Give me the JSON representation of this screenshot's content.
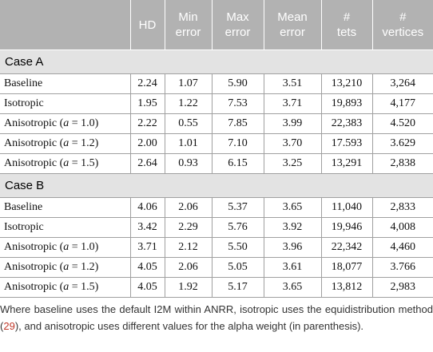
{
  "table": {
    "header": [
      [
        "HD"
      ],
      [
        "Min",
        "error"
      ],
      [
        "Max",
        "error"
      ],
      [
        "Mean",
        "error"
      ],
      [
        "#",
        "tets"
      ],
      [
        "#",
        "vertices"
      ]
    ],
    "sections": [
      {
        "title": "Case A",
        "rows": [
          {
            "label": [
              "Baseline"
            ],
            "cells": [
              "2.24",
              "1.07",
              "5.90",
              "3.51",
              "13,210",
              "3,264"
            ]
          },
          {
            "label": [
              "Isotropic"
            ],
            "cells": [
              "1.95",
              "1.22",
              "7.53",
              "3.71",
              "19,893",
              "4,177"
            ]
          },
          {
            "label": [
              "Anisotropic (",
              "a",
              " = 1.0)"
            ],
            "cells": [
              "2.22",
              "0.55",
              "7.85",
              "3.99",
              "22,383",
              "4.520"
            ]
          },
          {
            "label": [
              "Anisotropic (",
              "a",
              " = 1.2)"
            ],
            "cells": [
              "2.00",
              "1.01",
              "7.10",
              "3.70",
              "17.593",
              "3.629"
            ]
          },
          {
            "label": [
              "Anisotropic (",
              "a",
              " = 1.5)"
            ],
            "cells": [
              "2.64",
              "0.93",
              "6.15",
              "3.25",
              "13,291",
              "2,838"
            ]
          }
        ]
      },
      {
        "title": "Case B",
        "rows": [
          {
            "label": [
              "Baseline"
            ],
            "cells": [
              "4.06",
              "2.06",
              "5.37",
              "3.65",
              "11,040",
              "2,833"
            ]
          },
          {
            "label": [
              "Isotropic"
            ],
            "cells": [
              "3.42",
              "2.29",
              "5.76",
              "3.92",
              "19,946",
              "4,008"
            ]
          },
          {
            "label": [
              "Anisotropic (",
              "a",
              " = 1.0)"
            ],
            "cells": [
              "3.71",
              "2.12",
              "5.50",
              "3.96",
              "22,342",
              "4,460"
            ]
          },
          {
            "label": [
              "Anisotropic (",
              "a",
              " = 1.2)"
            ],
            "cells": [
              "4.05",
              "2.06",
              "5.05",
              "3.61",
              "18,077",
              "3.766"
            ]
          },
          {
            "label": [
              "Anisotropic (",
              "a",
              " = 1.5)"
            ],
            "cells": [
              "4.05",
              "1.92",
              "5.17",
              "3.65",
              "13,812",
              "2,983"
            ]
          }
        ]
      }
    ]
  },
  "footnote": [
    "Where baseline uses the default I2M within ANRR, isotropic uses the equidistribution method (",
    "29",
    "), and anisotropic uses different values for the alpha weight (in parenthesis)."
  ]
}
